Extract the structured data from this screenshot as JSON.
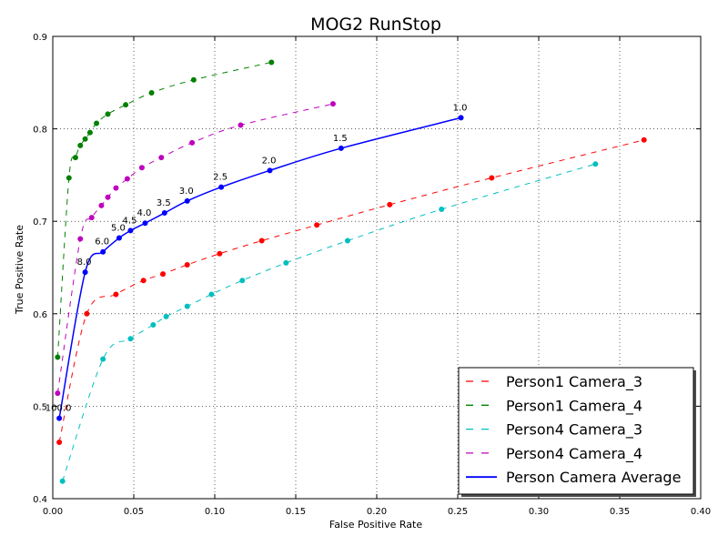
{
  "chart_data": {
    "type": "line",
    "title": "MOG2 RunStop",
    "xlabel": "False Positive Rate",
    "ylabel": "True Positive Rate",
    "xlim": [
      0.0,
      0.4
    ],
    "ylim": [
      0.4,
      0.9
    ],
    "x_ticks": [
      "0.00",
      "0.05",
      "0.10",
      "0.15",
      "0.20",
      "0.25",
      "0.30",
      "0.35",
      "0.40"
    ],
    "y_ticks": [
      "0.4",
      "0.5",
      "0.6",
      "0.7",
      "0.8",
      "0.9"
    ],
    "grid": true,
    "legend_position": "bottom-right",
    "series": [
      {
        "name": "Person1 Camera_3",
        "color": "#ff0000",
        "style": "dashed",
        "points": [
          [
            0.004,
            0.461
          ],
          [
            0.021,
            0.6
          ],
          [
            0.039,
            0.621
          ],
          [
            0.056,
            0.636
          ],
          [
            0.068,
            0.643
          ],
          [
            0.083,
            0.653
          ],
          [
            0.103,
            0.665
          ],
          [
            0.129,
            0.679
          ],
          [
            0.163,
            0.696
          ],
          [
            0.208,
            0.718
          ],
          [
            0.271,
            0.747
          ],
          [
            0.365,
            0.788
          ]
        ]
      },
      {
        "name": "Person1 Camera_4",
        "color": "#008000",
        "style": "dashed",
        "points": [
          [
            0.003,
            0.553
          ],
          [
            0.01,
            0.747
          ],
          [
            0.014,
            0.769
          ],
          [
            0.017,
            0.782
          ],
          [
            0.02,
            0.789
          ],
          [
            0.023,
            0.796
          ],
          [
            0.027,
            0.806
          ],
          [
            0.034,
            0.816
          ],
          [
            0.045,
            0.826
          ],
          [
            0.061,
            0.839
          ],
          [
            0.087,
            0.853
          ],
          [
            0.135,
            0.872
          ]
        ]
      },
      {
        "name": "Person4 Camera_3",
        "color": "#00bfbf",
        "style": "dashed",
        "points": [
          [
            0.006,
            0.419
          ],
          [
            0.031,
            0.551
          ],
          [
            0.048,
            0.573
          ],
          [
            0.062,
            0.588
          ],
          [
            0.07,
            0.597
          ],
          [
            0.083,
            0.608
          ],
          [
            0.098,
            0.621
          ],
          [
            0.117,
            0.636
          ],
          [
            0.144,
            0.655
          ],
          [
            0.182,
            0.679
          ],
          [
            0.24,
            0.713
          ],
          [
            0.335,
            0.762
          ]
        ]
      },
      {
        "name": "Person4 Camera_4",
        "color": "#bf00bf",
        "style": "dashed",
        "points": [
          [
            0.003,
            0.514
          ],
          [
            0.017,
            0.681
          ],
          [
            0.024,
            0.704
          ],
          [
            0.03,
            0.717
          ],
          [
            0.034,
            0.726
          ],
          [
            0.039,
            0.736
          ],
          [
            0.046,
            0.746
          ],
          [
            0.055,
            0.758
          ],
          [
            0.067,
            0.769
          ],
          [
            0.086,
            0.785
          ],
          [
            0.116,
            0.804
          ],
          [
            0.173,
            0.827
          ]
        ]
      },
      {
        "name": "Person Camera Average",
        "color": "#0000ff",
        "style": "solid",
        "points": [
          [
            0.004,
            0.487
          ],
          [
            0.02,
            0.645
          ],
          [
            0.031,
            0.667
          ],
          [
            0.041,
            0.682
          ],
          [
            0.048,
            0.69
          ],
          [
            0.057,
            0.698
          ],
          [
            0.069,
            0.709
          ],
          [
            0.083,
            0.722
          ],
          [
            0.104,
            0.737
          ],
          [
            0.134,
            0.755
          ],
          [
            0.178,
            0.779
          ],
          [
            0.252,
            0.812
          ]
        ],
        "labels": [
          "100.0",
          "8.0",
          "6.0",
          "5.0",
          "4.5",
          "4.0",
          "3.5",
          "3.0",
          "2.5",
          "2.0",
          "1.5",
          "1.0"
        ]
      }
    ]
  }
}
